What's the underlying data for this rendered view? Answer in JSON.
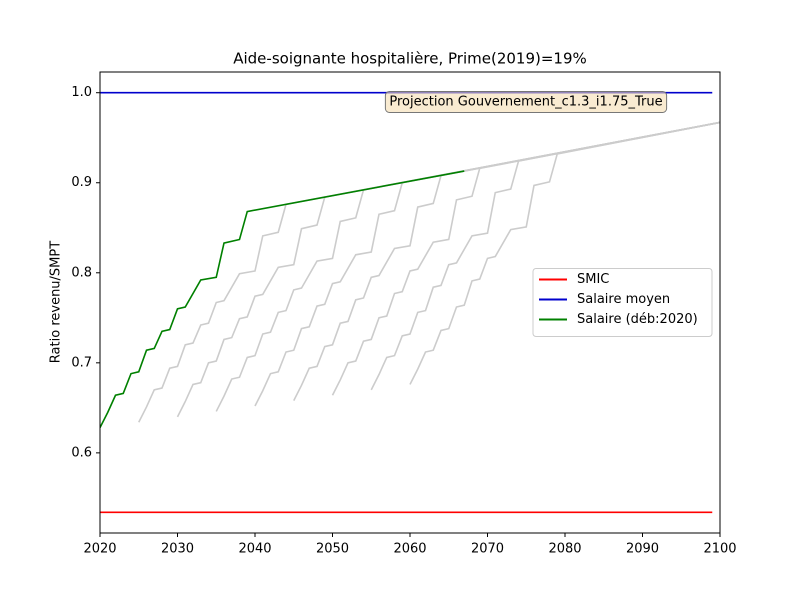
{
  "chart_data": {
    "type": "line",
    "title": "Aide-soignante hospitalière, Prime(2019)=19%",
    "y_label": "Ratio revenu/SMPT",
    "annotation": "Projection Gouvernement_c1.3_i1.75_True",
    "xlim": [
      2020,
      2100
    ],
    "xticks": [
      2020,
      2030,
      2040,
      2050,
      2060,
      2070,
      2080,
      2090,
      2100
    ],
    "ylim": [
      0.511,
      1.023
    ],
    "yticks": [
      0.6,
      0.7,
      0.8,
      0.9,
      {
        "value": 1,
        "label": "1.0"
      }
    ],
    "grid": false,
    "legend": "center right",
    "series": [
      {
        "color": "#cccccc",
        "x": [
          2025,
          2026,
          2027,
          2028,
          2029,
          2030,
          2031,
          2032,
          2033,
          2034,
          2035,
          2036,
          2038,
          2040,
          2041,
          2043,
          2044,
          2100
        ],
        "values": [
          0.634,
          0.651,
          0.67,
          0.672,
          0.694,
          0.696,
          0.72,
          0.722,
          0.742,
          0.744,
          0.767,
          0.769,
          0.799,
          0.802,
          0.841,
          0.845,
          0.876,
          0.967
        ]
      },
      {
        "color": "#cccccc",
        "x": [
          2030,
          2031,
          2032,
          2033,
          2034,
          2035,
          2036,
          2037,
          2038,
          2039,
          2040,
          2041,
          2043,
          2045,
          2046,
          2048,
          2049,
          2100
        ],
        "values": [
          0.64,
          0.657,
          0.676,
          0.678,
          0.7,
          0.702,
          0.726,
          0.728,
          0.749,
          0.751,
          0.774,
          0.776,
          0.806,
          0.809,
          0.849,
          0.853,
          0.884,
          0.967
        ]
      },
      {
        "color": "#cccccc",
        "x": [
          2035,
          2036,
          2037,
          2038,
          2039,
          2040,
          2041,
          2042,
          2043,
          2044,
          2045,
          2046,
          2048,
          2050,
          2051,
          2053,
          2054,
          2100
        ],
        "values": [
          0.646,
          0.663,
          0.682,
          0.684,
          0.706,
          0.708,
          0.732,
          0.734,
          0.756,
          0.758,
          0.781,
          0.783,
          0.813,
          0.816,
          0.857,
          0.861,
          0.892,
          0.967
        ]
      },
      {
        "color": "#cccccc",
        "x": [
          2040,
          2041,
          2042,
          2043,
          2044,
          2045,
          2046,
          2047,
          2048,
          2049,
          2050,
          2051,
          2053,
          2055,
          2056,
          2058,
          2059,
          2100
        ],
        "values": [
          0.652,
          0.669,
          0.688,
          0.69,
          0.712,
          0.714,
          0.738,
          0.74,
          0.763,
          0.765,
          0.788,
          0.79,
          0.82,
          0.823,
          0.865,
          0.869,
          0.9,
          0.967
        ]
      },
      {
        "color": "#cccccc",
        "x": [
          2045,
          2046,
          2047,
          2048,
          2049,
          2050,
          2051,
          2052,
          2053,
          2054,
          2055,
          2056,
          2058,
          2060,
          2061,
          2063,
          2064,
          2100
        ],
        "values": [
          0.658,
          0.675,
          0.694,
          0.696,
          0.718,
          0.72,
          0.744,
          0.746,
          0.77,
          0.772,
          0.795,
          0.797,
          0.827,
          0.83,
          0.873,
          0.877,
          0.908,
          0.967
        ]
      },
      {
        "color": "#cccccc",
        "x": [
          2050,
          2051,
          2052,
          2053,
          2054,
          2055,
          2056,
          2057,
          2058,
          2059,
          2060,
          2061,
          2063,
          2065,
          2066,
          2068,
          2069,
          2100
        ],
        "values": [
          0.664,
          0.681,
          0.7,
          0.702,
          0.724,
          0.726,
          0.75,
          0.752,
          0.777,
          0.779,
          0.802,
          0.804,
          0.834,
          0.837,
          0.881,
          0.885,
          0.916,
          0.967
        ]
      },
      {
        "color": "#cccccc",
        "x": [
          2055,
          2056,
          2057,
          2058,
          2059,
          2060,
          2061,
          2062,
          2063,
          2064,
          2065,
          2066,
          2068,
          2070,
          2071,
          2073,
          2074,
          2100
        ],
        "values": [
          0.67,
          0.687,
          0.706,
          0.708,
          0.73,
          0.732,
          0.756,
          0.758,
          0.784,
          0.786,
          0.809,
          0.811,
          0.841,
          0.844,
          0.889,
          0.893,
          0.924,
          0.967
        ]
      },
      {
        "color": "#cccccc",
        "x": [
          2060,
          2061,
          2062,
          2063,
          2064,
          2065,
          2066,
          2067,
          2068,
          2069,
          2070,
          2071,
          2073,
          2075,
          2076,
          2078,
          2079,
          2100
        ],
        "values": [
          0.676,
          0.693,
          0.712,
          0.714,
          0.736,
          0.738,
          0.762,
          0.764,
          0.791,
          0.793,
          0.816,
          0.818,
          0.848,
          0.851,
          0.897,
          0.901,
          0.932,
          0.967
        ]
      },
      {
        "name": "SMIC",
        "color": "#ff0000",
        "x": [
          2020,
          2099
        ],
        "values": [
          0.534,
          0.534
        ]
      },
      {
        "name": "Salaire moyen",
        "color": "#0000cc",
        "x": [
          2020,
          2099
        ],
        "values": [
          1,
          1
        ]
      },
      {
        "name": "Salaire (déb:2020)",
        "color": "#008000",
        "x": [
          2020,
          2021,
          2022,
          2023,
          2024,
          2025,
          2026,
          2027,
          2028,
          2029,
          2030,
          2031,
          2033,
          2035,
          2036,
          2038,
          2039,
          2067
        ],
        "values": [
          0.628,
          0.645,
          0.664,
          0.666,
          0.688,
          0.69,
          0.714,
          0.716,
          0.735,
          0.737,
          0.76,
          0.762,
          0.792,
          0.795,
          0.833,
          0.837,
          0.868,
          0.913
        ]
      }
    ]
  }
}
